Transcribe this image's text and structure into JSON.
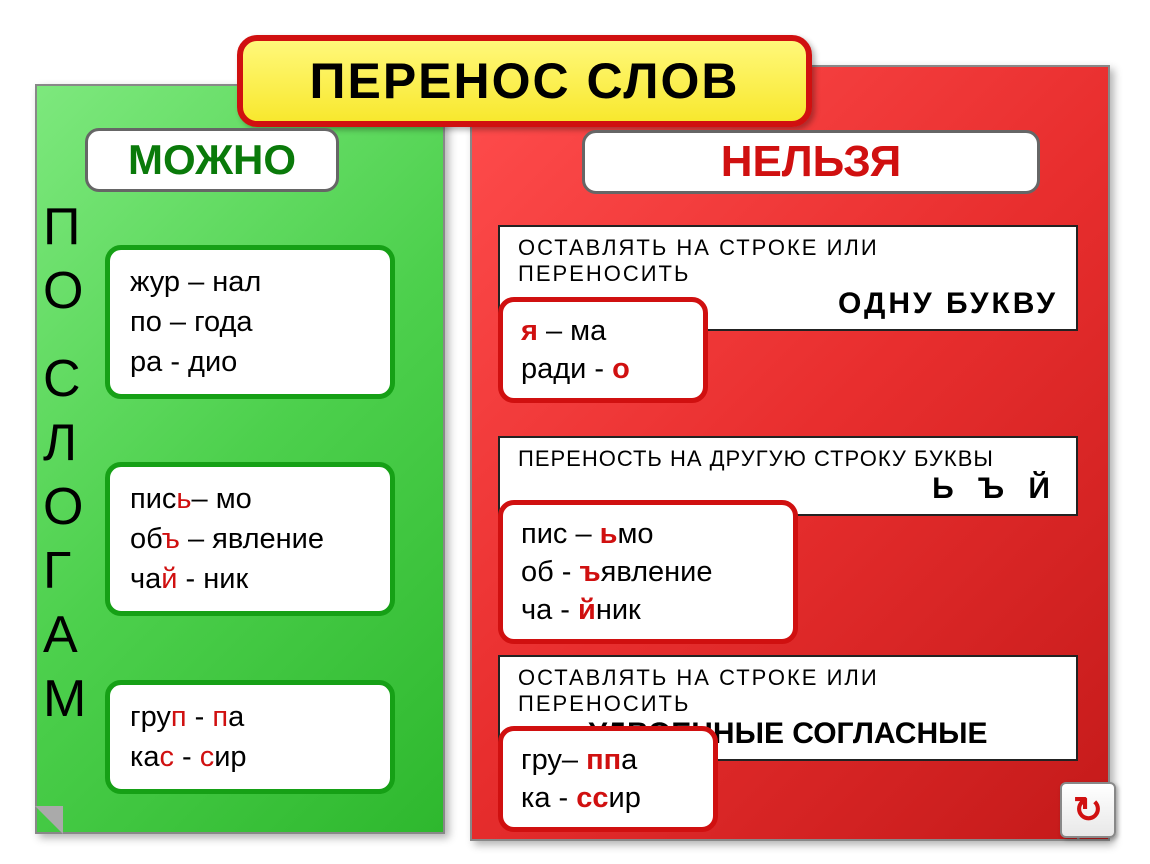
{
  "colors": {
    "green_panel_gradient": [
      "#7de87d",
      "#4dd04d",
      "#2eb82e"
    ],
    "red_panel_gradient": [
      "#ff4d4d",
      "#e82e2e",
      "#c41a1a"
    ],
    "title_bg_gradient": [
      "#fff87a",
      "#f8e82e"
    ],
    "title_border": "#d01010",
    "green_text": "#0a7a0a",
    "red_text": "#d01010",
    "card_green_border": "#16a016",
    "card_red_border": "#d01010",
    "rule_border": "#222222"
  },
  "typography": {
    "title_fontsize": 50,
    "label_fontsize": 44,
    "vertical_fontsize": 52,
    "card_fontsize": 29,
    "rule_fontsize": 22,
    "rule_big_fontsize": 30
  },
  "title": "ПЕРЕНОС   СЛОВ",
  "left_label": "МОЖНО",
  "right_label": "НЕЛЬЗЯ",
  "vertical": [
    "П",
    "О",
    " ",
    "С",
    "Л",
    "О",
    "Г",
    "А",
    "М"
  ],
  "green_cards": [
    {
      "lines": [
        {
          "parts": [
            {
              "t": "жур – нал"
            }
          ]
        },
        {
          "parts": [
            {
              "t": "по – года"
            }
          ]
        },
        {
          "parts": [
            {
              "t": "ра - дио"
            }
          ]
        }
      ]
    },
    {
      "lines": [
        {
          "parts": [
            {
              "t": "пис"
            },
            {
              "t": "ь",
              "hl": true
            },
            {
              "t": "– мо"
            }
          ]
        },
        {
          "parts": [
            {
              "t": "об"
            },
            {
              "t": "ъ",
              "hl": true
            },
            {
              "t": " – явление"
            }
          ]
        },
        {
          "parts": [
            {
              "t": "ча"
            },
            {
              "t": "й",
              "hl": true
            },
            {
              "t": " - ник"
            }
          ]
        }
      ]
    },
    {
      "lines": [
        {
          "parts": [
            {
              "t": "гру"
            },
            {
              "t": "п",
              "hl": true
            },
            {
              "t": " - "
            },
            {
              "t": "п",
              "hl": true
            },
            {
              "t": "а"
            }
          ]
        },
        {
          "parts": [
            {
              "t": "ка"
            },
            {
              "t": "с",
              "hl": true
            },
            {
              "t": " - "
            },
            {
              "t": "с",
              "hl": true
            },
            {
              "t": "ир"
            }
          ]
        }
      ]
    }
  ],
  "rules": [
    {
      "small": "ОСТАВЛЯТЬ  НА  СТРОКЕ  ИЛИ  ПЕРЕНОСИТЬ",
      "big": "ОДНУ  БУКВУ"
    },
    {
      "small": "ПЕРЕНОСТЬ  НА  ДРУГУЮ  СТРОКУ  БУКВЫ",
      "big": "Ь   Ъ   Й"
    },
    {
      "small": "ОСТАВЛЯТЬ  НА  СТРОКЕ  ИЛИ  ПЕРЕНОСИТЬ",
      "big": "УДВОЕННЫЕ СОГЛАСНЫЕ"
    }
  ],
  "red_cards": [
    {
      "lines": [
        {
          "parts": [
            {
              "t": "я",
              "hl": true
            },
            {
              "t": " – ма"
            }
          ]
        },
        {
          "parts": [
            {
              "t": "ради - "
            },
            {
              "t": "о",
              "hl": true
            }
          ]
        }
      ]
    },
    {
      "lines": [
        {
          "parts": [
            {
              "t": "пис – "
            },
            {
              "t": "ь",
              "hl": true
            },
            {
              "t": "мо"
            }
          ]
        },
        {
          "parts": [
            {
              "t": "об - "
            },
            {
              "t": "ъ",
              "hl": true
            },
            {
              "t": "явление"
            }
          ]
        },
        {
          "parts": [
            {
              "t": "ча - "
            },
            {
              "t": "й",
              "hl": true
            },
            {
              "t": "ник"
            }
          ]
        }
      ]
    },
    {
      "lines": [
        {
          "parts": [
            {
              "t": "гру– "
            },
            {
              "t": "пп",
              "hl": true
            },
            {
              "t": "а"
            }
          ]
        },
        {
          "parts": [
            {
              "t": "ка - "
            },
            {
              "t": "сс",
              "hl": true
            },
            {
              "t": "ир"
            }
          ]
        }
      ]
    }
  ],
  "nav_icon": "↻"
}
